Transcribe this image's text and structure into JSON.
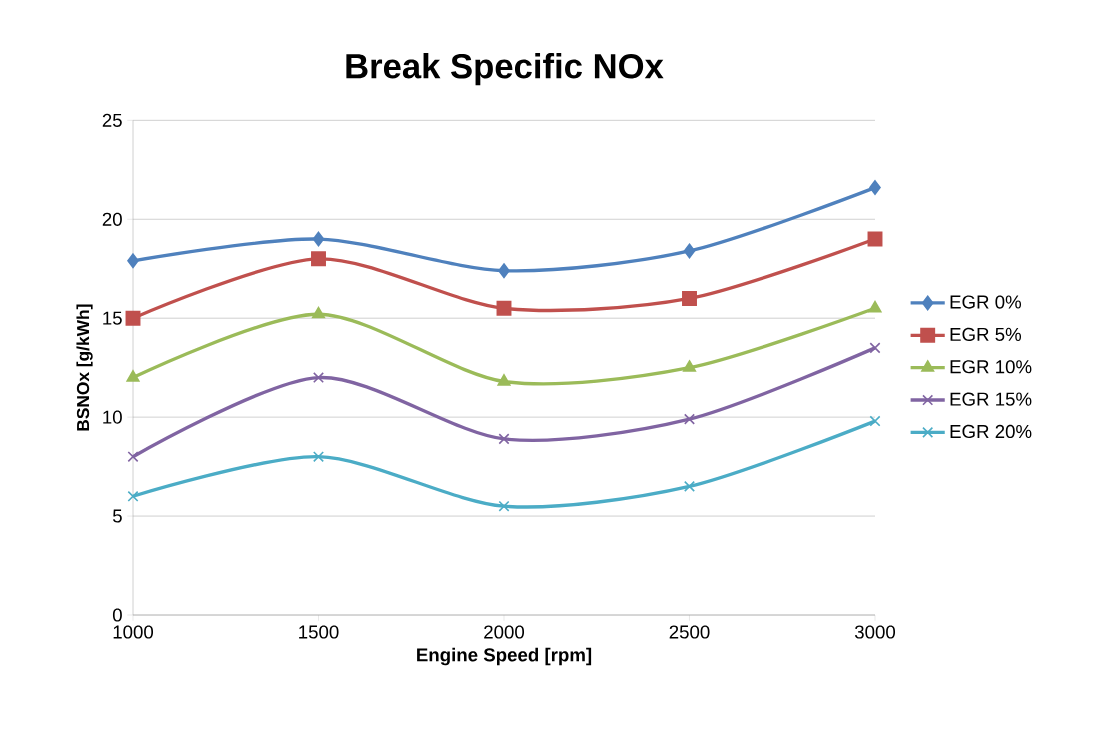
{
  "chart_data": {
    "type": "line",
    "title": "Break Specific NOx",
    "xlabel": "Engine Speed [rpm]",
    "ylabel": "BSNOx [g/kWh]",
    "x": [
      1000,
      1500,
      2000,
      2500,
      3000
    ],
    "series": [
      {
        "name": "EGR 0%",
        "color": "#4f81bd",
        "marker": "diamond",
        "values": [
          17.9,
          19.0,
          17.4,
          18.4,
          21.6
        ]
      },
      {
        "name": "EGR 5%",
        "color": "#c0504d",
        "marker": "square",
        "values": [
          15.0,
          18.0,
          15.5,
          16.0,
          19.0
        ]
      },
      {
        "name": "EGR 10%",
        "color": "#9bbb59",
        "marker": "triangle",
        "values": [
          12.0,
          15.2,
          11.8,
          12.5,
          15.5
        ]
      },
      {
        "name": "EGR 15%",
        "color": "#8064a2",
        "marker": "cross",
        "values": [
          8.0,
          12.0,
          8.9,
          9.9,
          13.5
        ]
      },
      {
        "name": "EGR 20%",
        "color": "#4bacc6",
        "marker": "cross",
        "values": [
          6.0,
          8.0,
          5.5,
          6.5,
          9.8
        ]
      }
    ],
    "xlim": [
      1000,
      3000
    ],
    "xticks": [
      1000,
      1500,
      2000,
      2500,
      3000
    ],
    "ylim": [
      0,
      25
    ],
    "yticks": [
      0,
      5,
      10,
      15,
      20,
      25
    ],
    "grid": "y",
    "legend": "right",
    "line_style": "solid"
  }
}
